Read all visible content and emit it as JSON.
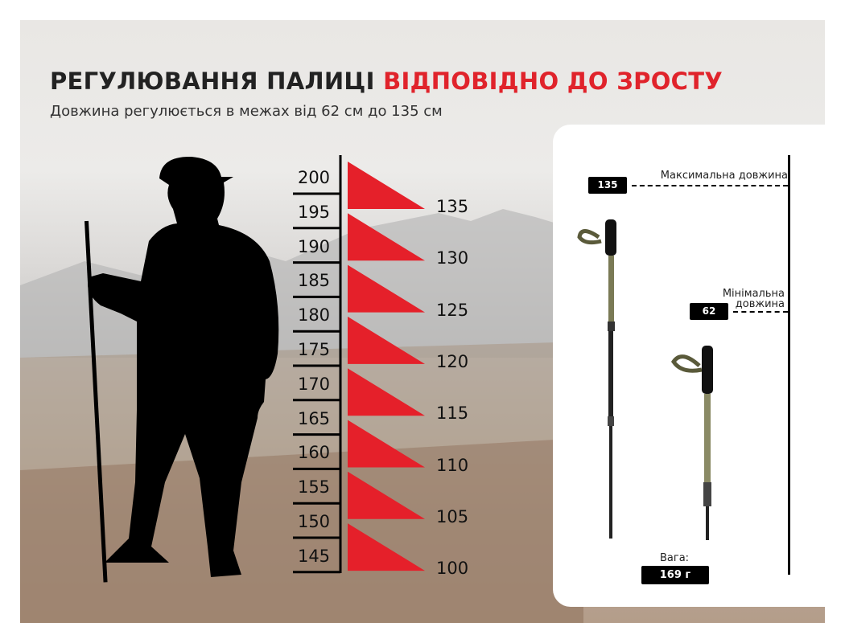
{
  "title": {
    "part1": "РЕГУЛЮВАННЯ ПАЛИЦІ ",
    "part2": "ВІДПОВІДНО ДО ЗРОСТУ"
  },
  "subtitle": "Довжина регулюється в межах від 62 см до 135 см",
  "heights": [
    "200",
    "195",
    "190",
    "185",
    "180",
    "175",
    "170",
    "165",
    "160",
    "155",
    "150",
    "145"
  ],
  "pole_lengths": [
    "135",
    "130",
    "125",
    "120",
    "115",
    "110",
    "105",
    "100"
  ],
  "card": {
    "max_value": "135",
    "max_label": "Максимальна довжина",
    "min_value": "62",
    "min_label_1": "Мінімальна",
    "min_label_2": "довжина",
    "weight_label": "Вага:",
    "weight_value": "169 г"
  },
  "colors": {
    "accent": "#e5202a",
    "text": "#111111"
  },
  "icons": [
    "hiker-silhouette",
    "trekking-pole-extended",
    "trekking-pole-folded"
  ]
}
